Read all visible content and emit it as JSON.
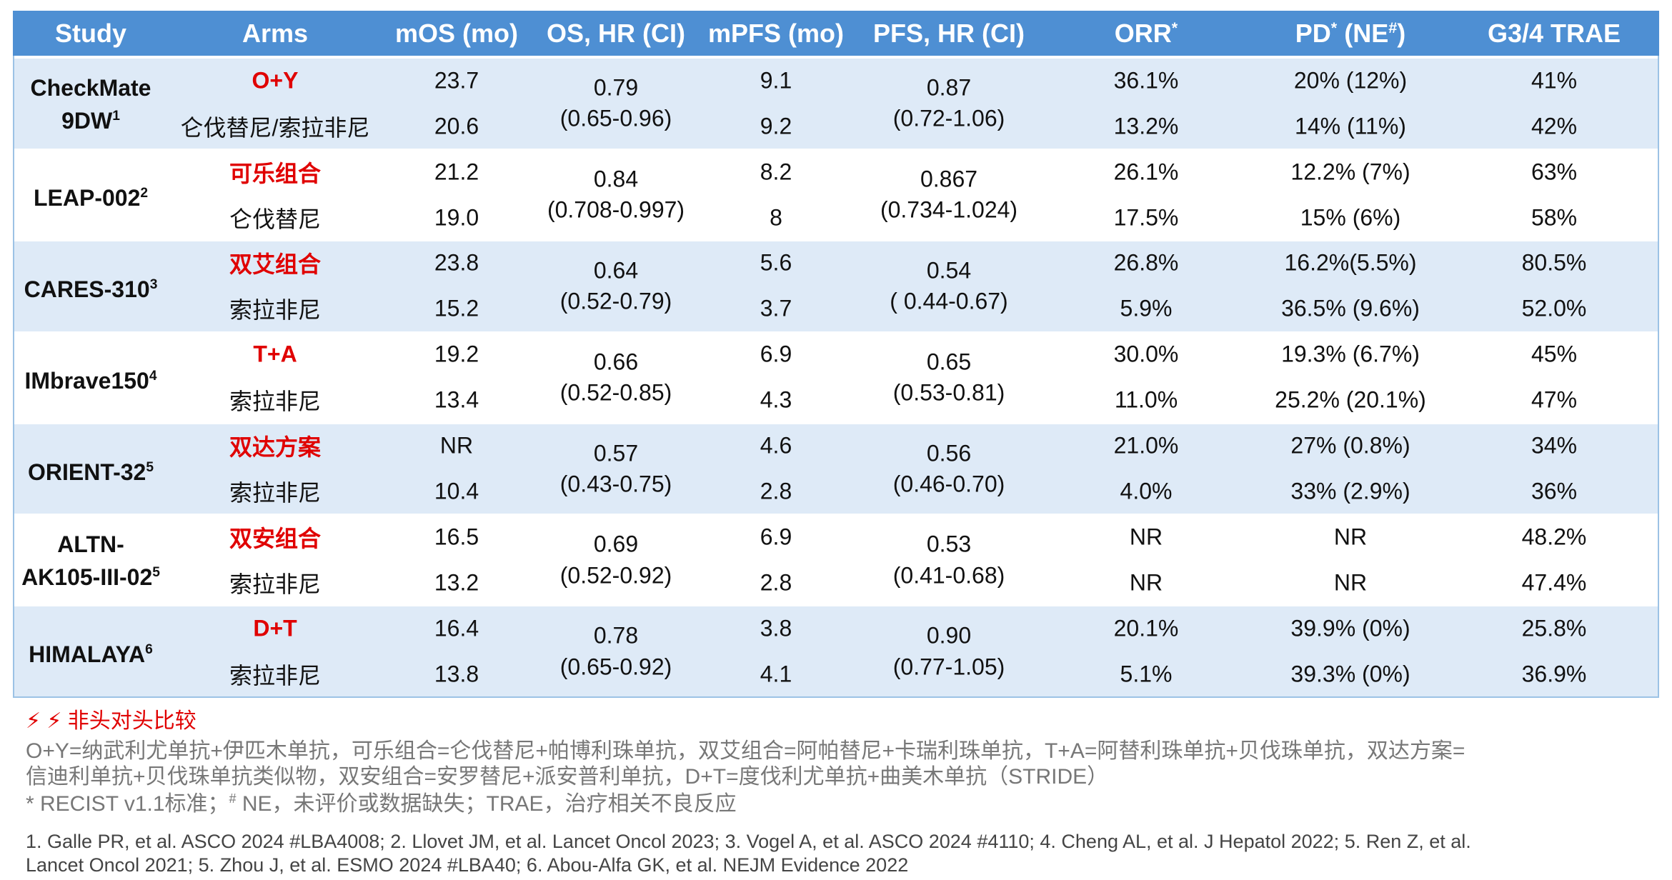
{
  "table": {
    "columns": [
      [
        {
          "text": "Study"
        }
      ],
      [
        {
          "text": "Arms"
        }
      ],
      [
        {
          "text": "mOS (mo)"
        }
      ],
      [
        {
          "text": "OS, HR (CI)"
        }
      ],
      [
        {
          "text": "mPFS (mo)"
        }
      ],
      [
        {
          "text": "PFS, HR (CI)"
        }
      ],
      [
        {
          "text": "ORR"
        },
        {
          "text": "*",
          "sup": true
        }
      ],
      [
        {
          "text": "PD"
        },
        {
          "text": "*",
          "sup": true
        },
        {
          "text": " (NE"
        },
        {
          "text": "#",
          "sup": true
        },
        {
          "text": ")"
        }
      ],
      [
        {
          "text": "G3/4 TRAE"
        }
      ]
    ],
    "groups": [
      {
        "study": [
          "CheckMate",
          "9DW"
        ],
        "sup": "1",
        "os_hr": "0.79",
        "os_ci": "(0.65-0.96)",
        "pfs_hr": "0.87",
        "pfs_ci": "(0.72-1.06)",
        "arms": [
          {
            "arm": "O+Y",
            "mos": "23.7",
            "mpfs": "9.1",
            "orr": "36.1%",
            "pd": "20% (12%)",
            "trae": "41%"
          },
          {
            "arm": "仑伐替尼/索拉非尼",
            "mos": "20.6",
            "mpfs": "9.2",
            "orr": "13.2%",
            "pd": "14% (11%)",
            "trae": "42%"
          }
        ]
      },
      {
        "study": [
          "LEAP-002"
        ],
        "sup": "2",
        "os_hr": "0.84",
        "os_ci": "(0.708-0.997)",
        "pfs_hr": "0.867",
        "pfs_ci": "(0.734-1.024)",
        "arms": [
          {
            "arm": "可乐组合",
            "mos": "21.2",
            "mpfs": "8.2",
            "orr": "26.1%",
            "pd": "12.2% (7%)",
            "trae": "63%"
          },
          {
            "arm": "仑伐替尼",
            "mos": "19.0",
            "mpfs": "8",
            "orr": "17.5%",
            "pd": "15% (6%)",
            "trae": "58%"
          }
        ]
      },
      {
        "study": [
          "CARES-310"
        ],
        "sup": "3",
        "os_hr": "0.64",
        "os_ci": "(0.52-0.79)",
        "pfs_hr": "0.54",
        "pfs_ci": "( 0.44-0.67)",
        "arms": [
          {
            "arm": "双艾组合",
            "mos": "23.8",
            "mpfs": "5.6",
            "orr": "26.8%",
            "pd": "16.2%(5.5%)",
            "trae": "80.5%"
          },
          {
            "arm": "索拉非尼",
            "mos": "15.2",
            "mpfs": "3.7",
            "orr": "5.9%",
            "pd": "36.5% (9.6%)",
            "trae": "52.0%"
          }
        ]
      },
      {
        "study": [
          "IMbrave150"
        ],
        "sup": "4",
        "os_hr": "0.66",
        "os_ci": "(0.52-0.85)",
        "pfs_hr": "0.65",
        "pfs_ci": "(0.53-0.81)",
        "arms": [
          {
            "arm": "T+A",
            "mos": "19.2",
            "mpfs": "6.9",
            "orr": "30.0%",
            "pd": "19.3% (6.7%)",
            "trae": "45%"
          },
          {
            "arm": "索拉非尼",
            "mos": "13.4",
            "mpfs": "4.3",
            "orr": "11.0%",
            "pd": "25.2% (20.1%)",
            "trae": "47%"
          }
        ]
      },
      {
        "study": [
          "ORIENT-32"
        ],
        "sup": "5",
        "os_hr": "0.57",
        "os_ci": "(0.43-0.75)",
        "pfs_hr": "0.56",
        "pfs_ci": "(0.46-0.70)",
        "arms": [
          {
            "arm": "双达方案",
            "mos": "NR",
            "mpfs": "4.6",
            "orr": "21.0%",
            "pd": "27% (0.8%)",
            "trae": "34%"
          },
          {
            "arm": "索拉非尼",
            "mos": "10.4",
            "mpfs": "2.8",
            "orr": "4.0%",
            "pd": "33% (2.9%)",
            "trae": "36%"
          }
        ]
      },
      {
        "study": [
          "ALTN-",
          "AK105-III-02"
        ],
        "sup": "5",
        "os_hr": "0.69",
        "os_ci": "(0.52-0.92)",
        "pfs_hr": "0.53",
        "pfs_ci": "(0.41-0.68)",
        "arms": [
          {
            "arm": "双安组合",
            "mos": "16.5",
            "mpfs": "6.9",
            "orr": "NR",
            "pd": "NR",
            "trae": "48.2%"
          },
          {
            "arm": "索拉非尼",
            "mos": "13.2",
            "mpfs": "2.8",
            "orr": "NR",
            "pd": "NR",
            "trae": "47.4%"
          }
        ]
      },
      {
        "study": [
          "HIMALAYA"
        ],
        "sup": "6",
        "os_hr": "0.78",
        "os_ci": "(0.65-0.92)",
        "pfs_hr": "0.90",
        "pfs_ci": "(0.77-1.05)",
        "arms": [
          {
            "arm": "D+T",
            "mos": "16.4",
            "mpfs": "3.8",
            "orr": "20.1%",
            "pd": "39.9% (0%)",
            "trae": "25.8%"
          },
          {
            "arm": "索拉非尼",
            "mos": "13.8",
            "mpfs": "4.1",
            "orr": "5.1%",
            "pd": "39.3% (0%)",
            "trae": "36.9%"
          }
        ]
      }
    ]
  },
  "notes": {
    "warning": "⚡ ⚡ 非头对头比较",
    "abbreviations": [
      "O+Y=纳武利尤单抗+伊匹木单抗，可乐组合=仑伐替尼+帕博利珠单抗，双艾组合=阿帕替尼+卡瑞利珠单抗，T+A=阿替利珠单抗+贝伐珠单抗，双达方案=",
      "信迪利单抗+贝伐珠单抗类似物，双安组合=安罗替尼+派安普利单抗，D+T=度伐利尤单抗+曲美木单抗（STRIDE）"
    ],
    "definitions": [
      {
        "text": "* RECIST v1.1标准；"
      },
      {
        "text": "#",
        "sup": true
      },
      {
        "text": " NE，未评价或数据缺失；TRAE，治疗相关不良反应"
      }
    ],
    "references": [
      "1. Galle PR, et al. ASCO 2024 #LBA4008; 2. Llovet JM, et al. Lancet Oncol 2023; 3. Vogel A, et al. ASCO 2024 #4110; 4. Cheng AL, et al. J Hepatol 2022; 5. Ren Z, et al.",
      "Lancet Oncol 2021; 5. Zhou J, et al. ESMO 2024 #LBA40; 6. Abou-Alfa GK, et al. NEJM Evidence 2022"
    ]
  }
}
